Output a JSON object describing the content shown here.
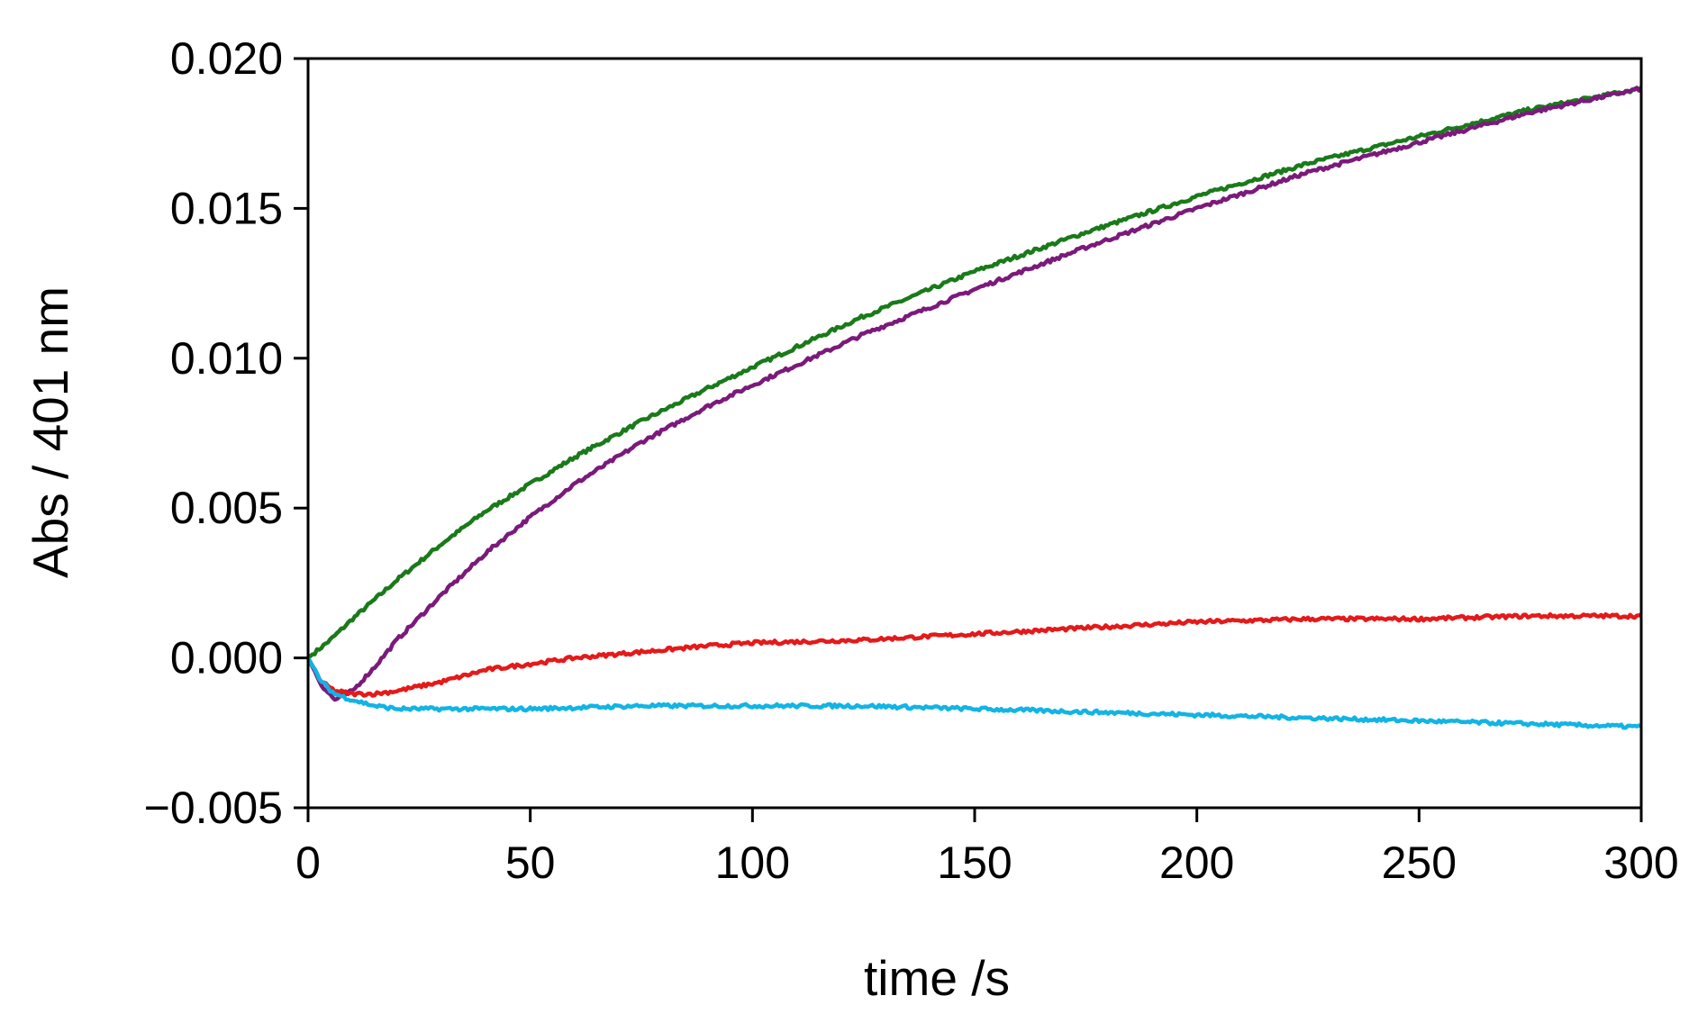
{
  "chart_data": {
    "type": "line",
    "title": "",
    "xlabel": "time /s",
    "ylabel": "Abs / 401 nm",
    "xlim": [
      0,
      300
    ],
    "ylim": [
      -0.005,
      0.02
    ],
    "x_ticks": [
      0,
      50,
      100,
      150,
      200,
      250,
      300
    ],
    "x_tick_labels": [
      "0",
      "50",
      "100",
      "150",
      "200",
      "250",
      "300"
    ],
    "y_ticks": [
      -0.005,
      0.0,
      0.005,
      0.01,
      0.015,
      0.02
    ],
    "y_tick_labels": [
      "−0.005",
      "0.000",
      "0.005",
      "0.010",
      "0.015",
      "0.020"
    ],
    "grid": false,
    "legend": "none",
    "series": [
      {
        "color": "#1a7a1a",
        "x": [
          0,
          5,
          10,
          20,
          30,
          40,
          50,
          60,
          75,
          90,
          100,
          125,
          150,
          175,
          200,
          225,
          250,
          275,
          300
        ],
        "y": [
          0.0,
          0.0006,
          0.0013,
          0.0026,
          0.0038,
          0.0049,
          0.0058,
          0.0067,
          0.0079,
          0.009,
          0.0097,
          0.0114,
          0.0129,
          0.0142,
          0.0154,
          0.0165,
          0.0174,
          0.0183,
          0.019
        ]
      },
      {
        "color": "#7b1a7b",
        "x": [
          0,
          3,
          6,
          10,
          15,
          20,
          30,
          40,
          50,
          60,
          75,
          90,
          100,
          125,
          150,
          175,
          200,
          225,
          250,
          275,
          300
        ],
        "y": [
          0.0,
          -0.0009,
          -0.0014,
          -0.0011,
          -0.0003,
          0.0006,
          0.0021,
          0.0035,
          0.0047,
          0.0058,
          0.0072,
          0.0084,
          0.0091,
          0.0108,
          0.0123,
          0.0137,
          0.015,
          0.0162,
          0.0172,
          0.0182,
          0.019
        ]
      },
      {
        "color": "#e41a1a",
        "x": [
          0,
          3,
          6,
          10,
          15,
          20,
          30,
          40,
          50,
          60,
          75,
          90,
          100,
          125,
          150,
          175,
          200,
          225,
          250,
          275,
          300
        ],
        "y": [
          0.0,
          -0.0008,
          -0.0011,
          -0.0012,
          -0.0012,
          -0.0011,
          -0.0008,
          -0.0004,
          -0.0002,
          0.0,
          0.0002,
          0.0004,
          0.0005,
          0.0006,
          0.0008,
          0.001,
          0.0012,
          0.0013,
          0.0013,
          0.0014,
          0.0014
        ]
      },
      {
        "color": "#12b4e4",
        "x": [
          0,
          3,
          6,
          10,
          15,
          20,
          30,
          50,
          75,
          100,
          125,
          150,
          175,
          200,
          225,
          250,
          275,
          300
        ],
        "y": [
          0.0,
          -0.0008,
          -0.0012,
          -0.0014,
          -0.0016,
          -0.0017,
          -0.0017,
          -0.0017,
          -0.0016,
          -0.0016,
          -0.0016,
          -0.0017,
          -0.0018,
          -0.0019,
          -0.002,
          -0.0021,
          -0.0022,
          -0.0023
        ]
      }
    ]
  }
}
